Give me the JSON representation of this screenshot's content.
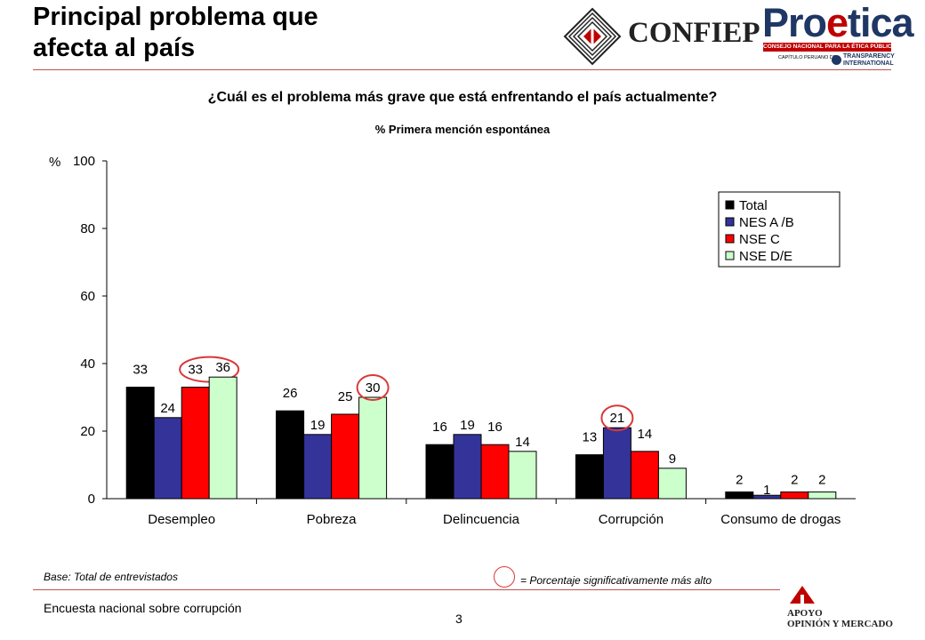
{
  "header": {
    "title_line1": "Principal problema que",
    "title_line2": "afecta al país",
    "confiep_logo": "CONFIEP",
    "proetica_logo": "Proetica",
    "proetica_subtitle": "CONSEJO NACIONAL PARA LA ÉTICA PÚBLICA",
    "proetica_chapter": "CAPÍTULO PERUANO DE:",
    "ti_line1": "TRANSPARENCY",
    "ti_line2": "INTERNATIONAL"
  },
  "question": "¿Cuál es el problema más grave que está enfrentando el país actualmente?",
  "subtitle": "% Primera mención espontánea",
  "chart_data": {
    "type": "bar",
    "title": "¿Cuál es el problema más grave que está enfrentando el país actualmente?",
    "subtitle": "% Primera mención espontánea",
    "ylabel": "%",
    "xlabel": "",
    "ylim": [
      0,
      100
    ],
    "yticks": [
      0,
      20,
      40,
      60,
      80,
      100
    ],
    "grid": false,
    "legend_position": "top-right",
    "categories": [
      "Desempleo",
      "Pobreza",
      "Delincuencia",
      "Corrupción",
      "Consumo de drogas"
    ],
    "series": [
      {
        "name": "Total",
        "color": "#000000",
        "values": [
          33,
          26,
          16,
          13,
          2
        ]
      },
      {
        "name": "NES A /B",
        "color": "#333399",
        "values": [
          24,
          19,
          19,
          21,
          1
        ]
      },
      {
        "name": "NSE C",
        "color": "#ff0000",
        "values": [
          33,
          25,
          16,
          14,
          2
        ]
      },
      {
        "name": "NSE D/E",
        "color": "#ccffcc",
        "values": [
          36,
          30,
          14,
          9,
          2
        ]
      }
    ],
    "highlighted": [
      {
        "category": "Desempleo",
        "series": [
          "NSE C",
          "NSE D/E"
        ]
      },
      {
        "category": "Pobreza",
        "series": [
          "NSE D/E"
        ]
      },
      {
        "category": "Corrupción",
        "series": [
          "NES A /B"
        ]
      }
    ],
    "highlight_color": "#d9383a"
  },
  "footer": {
    "base": "Base: Total de entrevistados",
    "legend_note": "= Porcentaje significativamente más alto",
    "survey": "Encuesta nacional sobre corrupción",
    "page": "3",
    "apoyo_line1": "APOYO",
    "apoyo_line2": "OPINIÓN Y MERCADO"
  }
}
